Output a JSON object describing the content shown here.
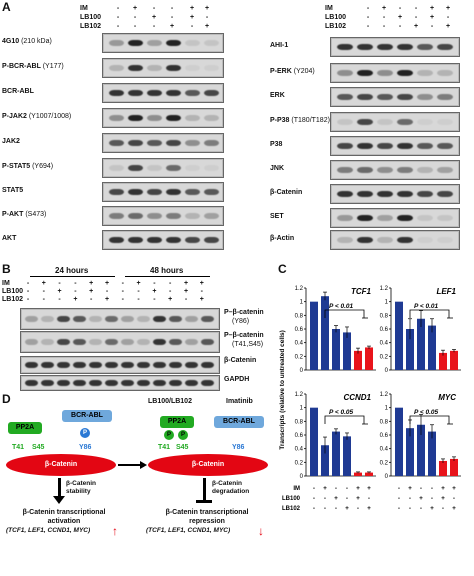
{
  "panel_labels": {
    "A": "A",
    "B": "B",
    "C": "C",
    "D": "D"
  },
  "panelA": {
    "conditions": [
      "IM",
      "LB100",
      "LB102"
    ],
    "signs": [
      [
        "-",
        "+",
        "-",
        "-",
        "+",
        "+"
      ],
      [
        "-",
        "-",
        "+",
        "-",
        "+",
        "-"
      ],
      [
        "-",
        "-",
        "-",
        "+",
        "-",
        "+"
      ]
    ],
    "left_blots": [
      {
        "name": "4G10",
        "detail": "(210 kDa)"
      },
      {
        "name": "P-BCR-ABL",
        "detail": "(Y177)"
      },
      {
        "name": "BCR-ABL",
        "detail": ""
      },
      {
        "name": "P-JAK2",
        "detail": "(Y1007/1008)"
      },
      {
        "name": "JAK2",
        "detail": ""
      },
      {
        "name": "P-STAT5",
        "detail": "(Y694)"
      },
      {
        "name": "STAT5",
        "detail": ""
      },
      {
        "name": "P-AKT",
        "detail": "(S473)"
      },
      {
        "name": "AKT",
        "detail": ""
      }
    ],
    "right_blots": [
      {
        "name": "AHI-1",
        "detail": ""
      },
      {
        "name": "P-ERK",
        "detail": "(Y204)"
      },
      {
        "name": "ERK",
        "detail": ""
      },
      {
        "name": "P-P38",
        "detail": "(T180/T182)"
      },
      {
        "name": "P38",
        "detail": ""
      },
      {
        "name": "JNK",
        "detail": ""
      },
      {
        "name": "β-Catenin",
        "detail": ""
      },
      {
        "name": "SET",
        "detail": ""
      },
      {
        "name": "β-Actin",
        "detail": ""
      }
    ]
  },
  "panelB": {
    "time_labels": [
      "24 hours",
      "48 hours"
    ],
    "conditions": [
      "IM",
      "LB100",
      "LB102"
    ],
    "signs": [
      [
        "-",
        "+",
        "-",
        "-",
        "+",
        "+",
        "-",
        "+",
        "-",
        "-",
        "+",
        "+"
      ],
      [
        "-",
        "-",
        "+",
        "-",
        "+",
        "-",
        "-",
        "-",
        "+",
        "-",
        "+",
        "-"
      ],
      [
        "-",
        "-",
        "-",
        "+",
        "-",
        "+",
        "-",
        "-",
        "-",
        "+",
        "-",
        "+"
      ]
    ],
    "blots": [
      {
        "name": "P–β-catenin",
        "detail": "(Y86)"
      },
      {
        "name": "P–β-catenin",
        "detail": "(T41,S45)"
      },
      {
        "name": "β-Catenin",
        "detail": ""
      },
      {
        "name": "GAPDH",
        "detail": ""
      }
    ]
  },
  "panelC": {
    "ylabel": "Transcripts (relative to untreated cells)",
    "row_labels": [
      "IM",
      "LB100",
      "LB102"
    ],
    "signs": [
      [
        "-",
        "+",
        "-",
        "-",
        "+",
        "+"
      ],
      [
        "-",
        "-",
        "+",
        "-",
        "+",
        "-"
      ],
      [
        "-",
        "-",
        "-",
        "+",
        "-",
        "+"
      ]
    ],
    "colors": {
      "blue": "#1f3a93",
      "red": "#e8141b"
    }
  },
  "chart_data": [
    {
      "type": "bar",
      "title": "TCF1",
      "ylim": [
        0,
        1.2
      ],
      "yticks": [
        "0",
        "0.2",
        "0.4",
        "0.6",
        "0.8",
        "1",
        "1.2"
      ],
      "values": [
        1.0,
        1.08,
        0.6,
        0.55,
        0.28,
        0.33
      ],
      "errors": [
        0.0,
        0.06,
        0.05,
        0.08,
        0.04,
        0.02
      ],
      "pvalue": "P < 0.01"
    },
    {
      "type": "bar",
      "title": "LEF1",
      "ylim": [
        0,
        1.2
      ],
      "yticks": [
        "0",
        "0.2",
        "0.4",
        "0.6",
        "0.8",
        "1",
        "1.2"
      ],
      "values": [
        1.0,
        0.6,
        0.75,
        0.65,
        0.25,
        0.28
      ],
      "errors": [
        0.0,
        0.15,
        0.12,
        0.1,
        0.04,
        0.02
      ],
      "pvalue": "P < 0.01"
    },
    {
      "type": "bar",
      "title": "CCND1",
      "ylim": [
        0,
        1.2
      ],
      "yticks": [
        "0",
        "0.2",
        "0.4",
        "0.6",
        "0.8",
        "1",
        "1.2"
      ],
      "values": [
        1.0,
        0.45,
        0.65,
        0.58,
        0.05,
        0.05
      ],
      "errors": [
        0.0,
        0.12,
        0.04,
        0.05,
        0.01,
        0.01
      ],
      "pvalue": "P < 0.05"
    },
    {
      "type": "bar",
      "title": "MYC",
      "ylim": [
        0,
        1.2
      ],
      "yticks": [
        "0",
        "0.2",
        "0.4",
        "0.6",
        "0.8",
        "1",
        "1.2"
      ],
      "values": [
        1.0,
        0.7,
        0.75,
        0.65,
        0.22,
        0.25
      ],
      "errors": [
        0.0,
        0.12,
        0.15,
        0.1,
        0.03,
        0.03
      ],
      "pvalue": "P < 0.05"
    }
  ],
  "panelD": {
    "left": {
      "pp2a": "PP2A",
      "bcr_abl": "BCR-ABL",
      "phospho": "P",
      "sites": [
        "T41",
        "S45"
      ],
      "y86": "Y86",
      "catenin": "β-Catenin",
      "stability": "β-Catenin\nstability",
      "outcome_title": "β-Catenin transcriptional\nactivation",
      "genes": "(TCF1, LEF1, CCND1, MYC)"
    },
    "right": {
      "lb": "LB100/LB102",
      "imatinib": "Imatinib",
      "pp2a": "PP2A",
      "bcr_abl": "BCR-ABL",
      "phospho": "P",
      "sites": [
        "T41",
        "S45"
      ],
      "y86": "Y86",
      "catenin": "β-Catenin",
      "degradation": "β-Catenin\ndegradation",
      "outcome_title": "β-Catenin transcriptional\nrepression",
      "genes": "(TCF1, LEF1, CCND1, MYC)"
    },
    "colors": {
      "green": "#22aa22",
      "blue": "#6fa8dc",
      "red": "#e30613",
      "arrow_up": "#e30613",
      "arrow_down": "#e30613"
    }
  }
}
